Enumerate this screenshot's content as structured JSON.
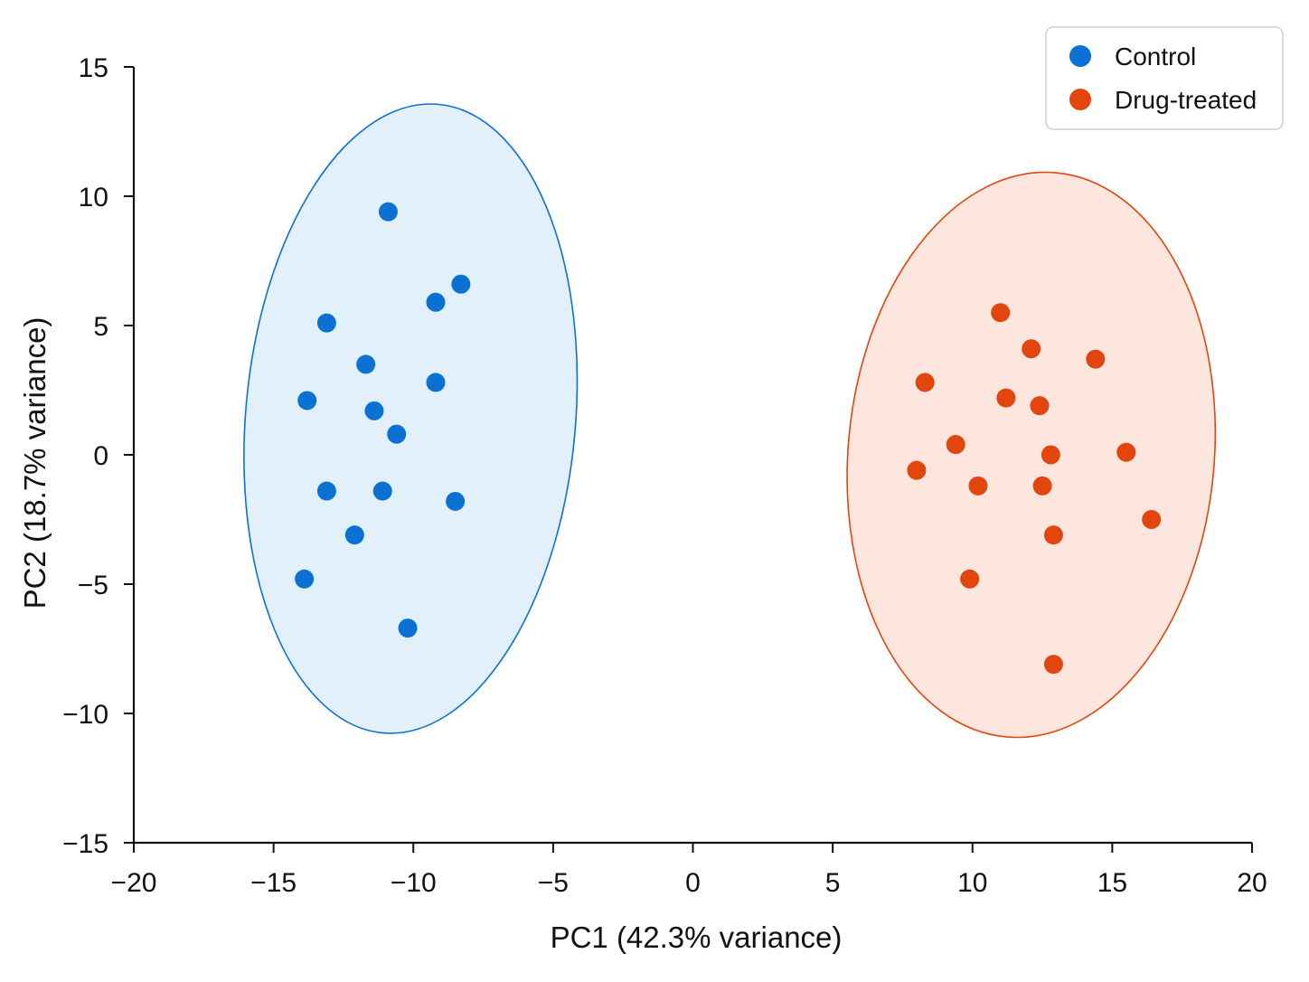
{
  "chart_data": {
    "type": "scatter",
    "title": "",
    "xlabel": "PC1 (42.3% variance)",
    "ylabel": "PC2 (18.7% variance)",
    "xlim": [
      -20,
      20
    ],
    "ylim": [
      -15,
      15
    ],
    "xticks": [
      -20,
      -15,
      -10,
      -5,
      0,
      5,
      10,
      15,
      20
    ],
    "yticks": [
      -15,
      -10,
      -5,
      0,
      5,
      10,
      15
    ],
    "xtick_labels": [
      "−20",
      "−15",
      "−10",
      "−5",
      "0",
      "5",
      "10",
      "15",
      "20"
    ],
    "ytick_labels": [
      "−15",
      "−10",
      "−5",
      "0",
      "5",
      "10",
      "15"
    ],
    "grid": false,
    "legend_position": "top-right",
    "series": [
      {
        "name": "Control",
        "color": "#0b72d4",
        "fill_color": "#e2f0fb",
        "ellipse": {
          "cx": -10.1,
          "cy": 1.4,
          "rx": 5.9,
          "ry": 12.2,
          "rotation_deg": -5
        },
        "points": [
          {
            "x": -10.9,
            "y": 9.4
          },
          {
            "x": -8.3,
            "y": 6.6
          },
          {
            "x": -9.2,
            "y": 5.9
          },
          {
            "x": -13.1,
            "y": 5.1
          },
          {
            "x": -11.7,
            "y": 3.5
          },
          {
            "x": -9.2,
            "y": 2.8
          },
          {
            "x": -13.8,
            "y": 2.1
          },
          {
            "x": -11.4,
            "y": 1.7
          },
          {
            "x": -10.6,
            "y": 0.8
          },
          {
            "x": -13.1,
            "y": -1.4
          },
          {
            "x": -11.1,
            "y": -1.4
          },
          {
            "x": -8.5,
            "y": -1.8
          },
          {
            "x": -12.1,
            "y": -3.1
          },
          {
            "x": -13.9,
            "y": -4.8
          },
          {
            "x": -10.2,
            "y": -6.7
          }
        ]
      },
      {
        "name": "Drug-treated",
        "color": "#e2450e",
        "fill_color": "#fde6dd",
        "ellipse": {
          "cx": 12.1,
          "cy": 0.0,
          "rx": 6.55,
          "ry": 10.95,
          "rotation_deg": -5
        },
        "points": [
          {
            "x": 11.0,
            "y": 5.5
          },
          {
            "x": 12.1,
            "y": 4.1
          },
          {
            "x": 14.4,
            "y": 3.7
          },
          {
            "x": 8.3,
            "y": 2.8
          },
          {
            "x": 11.2,
            "y": 2.2
          },
          {
            "x": 12.4,
            "y": 1.9
          },
          {
            "x": 9.4,
            "y": 0.4
          },
          {
            "x": 12.8,
            "y": 0.0
          },
          {
            "x": 15.5,
            "y": 0.1
          },
          {
            "x": 8.0,
            "y": -0.6
          },
          {
            "x": 10.2,
            "y": -1.2
          },
          {
            "x": 12.5,
            "y": -1.2
          },
          {
            "x": 16.4,
            "y": -2.5
          },
          {
            "x": 12.9,
            "y": -3.1
          },
          {
            "x": 9.9,
            "y": -4.8
          },
          {
            "x": 12.9,
            "y": -8.1
          }
        ]
      }
    ]
  }
}
